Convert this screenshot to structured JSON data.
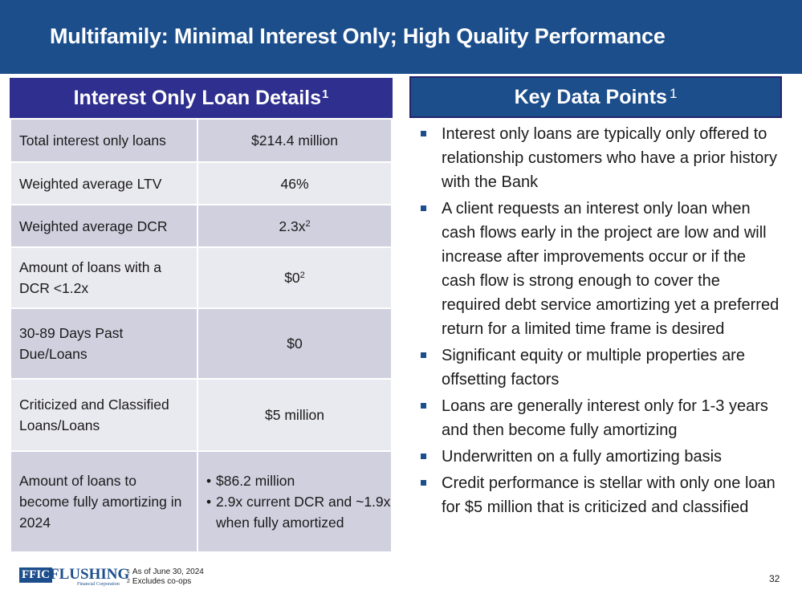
{
  "slide": {
    "title": "Multifamily: Minimal Interest Only; High Quality Performance",
    "page_number": "32"
  },
  "left_panel": {
    "header": "Interest Only Loan Details",
    "header_sup": "1",
    "rows": [
      {
        "label": "Total interest only loans",
        "value": "$214.4 million",
        "value_sup": ""
      },
      {
        "label": "Weighted average LTV",
        "value": "46%",
        "value_sup": ""
      },
      {
        "label": "Weighted average DCR",
        "value": "2.3x",
        "value_sup": "2"
      },
      {
        "label": "Amount of loans with a DCR <1.2x",
        "value": "$0",
        "value_sup": "2"
      },
      {
        "label": "30-89 Days Past Due/Loans",
        "value": "$0",
        "value_sup": ""
      },
      {
        "label": "Criticized and Classified Loans/Loans",
        "value": "$5 million",
        "value_sup": ""
      },
      {
        "label": "Amount of loans to become fully amortizing in 2024",
        "value_list": [
          "$86.2 million",
          "2.9x current DCR and ~1.9x when fully amortized"
        ]
      }
    ]
  },
  "right_panel": {
    "header": "Key Data Points",
    "header_sup": "1",
    "bullets": [
      "Interest only loans are typically only offered to relationship customers who have a prior history with the Bank",
      "A client requests an interest only loan when cash flows early in the project are low and will increase after improvements occur or if the cash flow is strong enough to cover the required debt service amortizing yet a preferred return for a limited time frame is desired",
      "Significant equity or multiple properties are offsetting factors",
      "Loans are generally interest only for 1-3 years and then become fully amortizing",
      "Underwritten on a fully amortizing basis",
      "Credit performance is stellar with only one loan for $5 million that is criticized and classified"
    ]
  },
  "footer": {
    "logo": {
      "ffic": "FFIC",
      "name": "FLUSHING",
      "sub": "Financial Corporation"
    },
    "footnotes": [
      {
        "num": "1",
        "text": "As of June 30, 2024"
      },
      {
        "num": "2",
        "text": "Excludes co-ops"
      }
    ]
  },
  "colors": {
    "title_bar": "#1c4e8c",
    "table_header": "#2f2f8f",
    "row_dark": "#d1d0df",
    "row_light": "#e9e9f0"
  }
}
